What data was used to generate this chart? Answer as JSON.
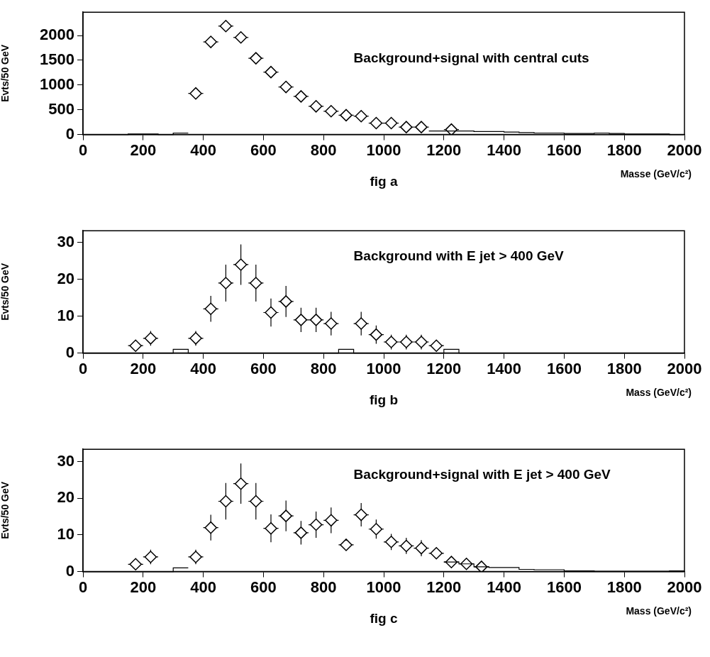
{
  "chart_data": [
    {
      "type": "scatter",
      "title": "Background+signal with central cuts",
      "ylabel": "Evts/50 GeV",
      "xlabel": "Masse (GeV/c²)",
      "annotations": [
        "fig a"
      ],
      "xlim": [
        0,
        2000
      ],
      "xticks": [
        0,
        200,
        400,
        600,
        800,
        1000,
        1200,
        1400,
        1600,
        1800,
        2000
      ],
      "ylim": [
        0,
        2470
      ],
      "yticks": [
        0,
        500,
        1000,
        1500,
        2000
      ],
      "marker": "diamond",
      "series": [
        {
          "type": "histogram",
          "color": "#000000",
          "bins": [
            0,
            50,
            100,
            150,
            200,
            250,
            300,
            350
          ],
          "values": [
            0,
            0,
            0,
            10,
            10,
            0,
            30
          ]
        },
        {
          "type": "histogram",
          "color": "#000000",
          "bins": [
            1150,
            1200,
            1250,
            1300,
            1350,
            1400,
            1450,
            1500,
            1550,
            1600,
            1650,
            1700,
            1750,
            1800,
            1850,
            1900,
            1950,
            2000
          ],
          "values": [
            70,
            70,
            70,
            60,
            60,
            50,
            40,
            30,
            30,
            20,
            20,
            30,
            20,
            10,
            10,
            10,
            0
          ]
        },
        {
          "type": "scatter",
          "color": "#000000",
          "x": [
            375,
            425,
            475,
            525,
            575,
            625,
            675,
            725,
            775,
            825,
            875,
            925,
            975,
            1025,
            1075,
            1125,
            1225
          ],
          "values": [
            830,
            1870,
            2190,
            1960,
            1540,
            1260,
            960,
            770,
            570,
            470,
            390,
            370,
            230,
            230,
            150,
            150,
            100
          ],
          "xerrors": [
            25,
            25,
            25,
            25,
            25,
            25,
            25,
            25,
            25,
            25,
            25,
            25,
            25,
            25,
            25,
            25,
            25
          ]
        }
      ]
    },
    {
      "type": "scatter",
      "title": "Background with E jet > 400 GeV",
      "ylabel": "Evts/50 GeV",
      "xlabel": "Mass (GeV/c²)",
      "annotations": [
        "fig b"
      ],
      "xlim": [
        0,
        2000
      ],
      "xticks": [
        0,
        200,
        400,
        600,
        800,
        1000,
        1200,
        1400,
        1600,
        1800,
        2000
      ],
      "ylim": [
        0,
        33.2
      ],
      "yticks": [
        0,
        10,
        20,
        30
      ],
      "marker": "diamond",
      "series": [
        {
          "type": "histogram",
          "color": "#000000",
          "bins": [
            0,
            50,
            100,
            150,
            200,
            250,
            300,
            350,
            400,
            450,
            500,
            550,
            600,
            650,
            700,
            750,
            800,
            850,
            900,
            950,
            1000,
            1050,
            1100,
            1150,
            1200,
            1250,
            1300,
            1350,
            1400,
            1450,
            1500,
            1550,
            1600,
            1650,
            1700,
            1750,
            1800,
            1850,
            1900,
            1950,
            2000
          ],
          "values": [
            0,
            0,
            0,
            0,
            0,
            0,
            1,
            0,
            0,
            0,
            0,
            0,
            0,
            0,
            0,
            0,
            0,
            1,
            0,
            0,
            0,
            0,
            0,
            0,
            1,
            0,
            0,
            0,
            0,
            0,
            0,
            0,
            0,
            0,
            0,
            0,
            0,
            0,
            0,
            0
          ]
        },
        {
          "type": "scatter",
          "color": "#000000",
          "x": [
            175,
            225,
            375,
            425,
            475,
            525,
            575,
            625,
            675,
            725,
            775,
            825,
            925,
            975,
            1025,
            1075,
            1125,
            1175
          ],
          "values": [
            2,
            4,
            4,
            12,
            19,
            24,
            19,
            11,
            14,
            9,
            9,
            8,
            8,
            5,
            3,
            3,
            3,
            2
          ],
          "errors": [
            1.5,
            2,
            2,
            3.5,
            5,
            5.5,
            5,
            3.8,
            4.2,
            3.3,
            3.3,
            3.2,
            3.2,
            2.5,
            2,
            2,
            2,
            1.5
          ],
          "xerrors": [
            25,
            25,
            25,
            25,
            25,
            25,
            25,
            25,
            25,
            25,
            25,
            25,
            25,
            25,
            25,
            25,
            25,
            25
          ]
        }
      ]
    },
    {
      "type": "scatter",
      "title": "Background+signal with E jet > 400 GeV",
      "ylabel": "Evts/50 GeV",
      "xlabel": "Mass (GeV/c²)",
      "annotations": [
        "fig c"
      ],
      "xlim": [
        0,
        2000
      ],
      "xticks": [
        0,
        200,
        400,
        600,
        800,
        1000,
        1200,
        1400,
        1600,
        1800,
        2000
      ],
      "ylim": [
        0,
        33.4
      ],
      "yticks": [
        0,
        10,
        20,
        30
      ],
      "marker": "diamond",
      "series": [
        {
          "type": "histogram",
          "color": "#000000",
          "bins": [
            0,
            50,
            100,
            150,
            200,
            250,
            300,
            350
          ],
          "values": [
            0,
            0,
            0,
            0,
            0,
            0,
            1
          ]
        },
        {
          "type": "histogram",
          "color": "#000000",
          "bins": [
            1200,
            1250,
            1300,
            1350,
            1400,
            1450,
            1500,
            1550,
            1600,
            1650,
            1700,
            1750,
            1800,
            1850,
            1900,
            1950,
            2000
          ],
          "values": [
            2.6,
            2.1,
            1.3,
            1.1,
            1.1,
            0.6,
            0.5,
            0.5,
            0.2,
            0.2,
            0.1,
            0.1,
            0.1,
            0.1,
            0.1,
            0.2
          ]
        },
        {
          "type": "scatter",
          "color": "#000000",
          "x": [
            175,
            225,
            375,
            425,
            475,
            525,
            575,
            625,
            675,
            725,
            775,
            825,
            875,
            925,
            975,
            1025,
            1075,
            1125,
            1175,
            1225,
            1275,
            1325
          ],
          "values": [
            2,
            4,
            4,
            12,
            19.2,
            24,
            19.2,
            11.8,
            15.2,
            10.6,
            12.8,
            14,
            7.3,
            15.5,
            11.6,
            8.1,
            7,
            6.4,
            5,
            2.6,
            2.1,
            1.3
          ],
          "errors": [
            1.5,
            2,
            2,
            3.5,
            5,
            5.5,
            5,
            3.8,
            4.2,
            3.2,
            3.6,
            3.5,
            0.7,
            3.2,
            2.6,
            2.2,
            2.2,
            2.2,
            1.5,
            0.8,
            0.6,
            0.6
          ],
          "xerrors": [
            25,
            25,
            25,
            25,
            25,
            25,
            25,
            25,
            25,
            25,
            25,
            25,
            25,
            25,
            25,
            25,
            25,
            25,
            25,
            25,
            25,
            25
          ]
        }
      ]
    }
  ]
}
